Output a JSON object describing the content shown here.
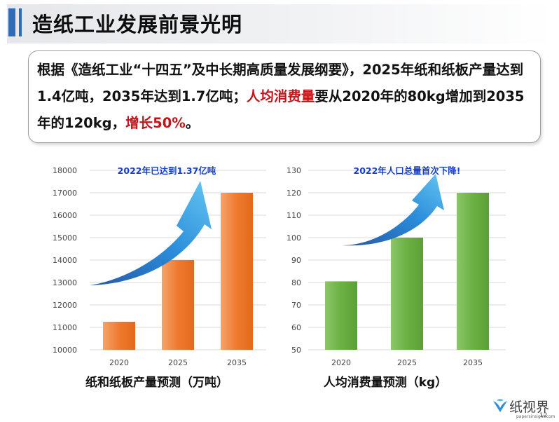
{
  "header": {
    "title": "造纸工业发展前景光明"
  },
  "callout": {
    "t1": "根据《造纸工业“十四五”及中长期高质量发展纲要》，2025年纸和纸板产量达到1.4亿吨，2035年达到1.7亿吨；",
    "t2_red": "人均消费量",
    "t3": "要从2020年的80kg增加到2035年的120kg，",
    "t4_red": "增长50%",
    "t5": "。"
  },
  "chart_data": [
    {
      "type": "bar",
      "title": "纸和纸板产量预测（万吨）",
      "annotation": "2022年已达到1.37亿吨",
      "categories": [
        "2020",
        "2025",
        "2035"
      ],
      "values": [
        11250,
        14000,
        17000
      ],
      "ylim": [
        10000,
        18000
      ],
      "yticks": [
        "10000",
        "11000",
        "12000",
        "13000",
        "14000",
        "15000",
        "16000",
        "17000",
        "18000"
      ],
      "color": "#ee7a2f",
      "grid": true
    },
    {
      "type": "bar",
      "title": "人均消费量预测（kg）",
      "annotation": "2022年人口总量首次下降!",
      "categories": [
        "2020",
        "2025",
        "2035"
      ],
      "values": [
        80.5,
        100,
        120
      ],
      "ylim": [
        50,
        130
      ],
      "yticks": [
        "50",
        "60",
        "70",
        "80",
        "90",
        "100",
        "110",
        "120",
        "130"
      ],
      "color": "#6bb143",
      "grid": true
    }
  ],
  "footer": {
    "logo": "纸视界",
    "url": "papersinsight.com",
    "page": "12"
  }
}
